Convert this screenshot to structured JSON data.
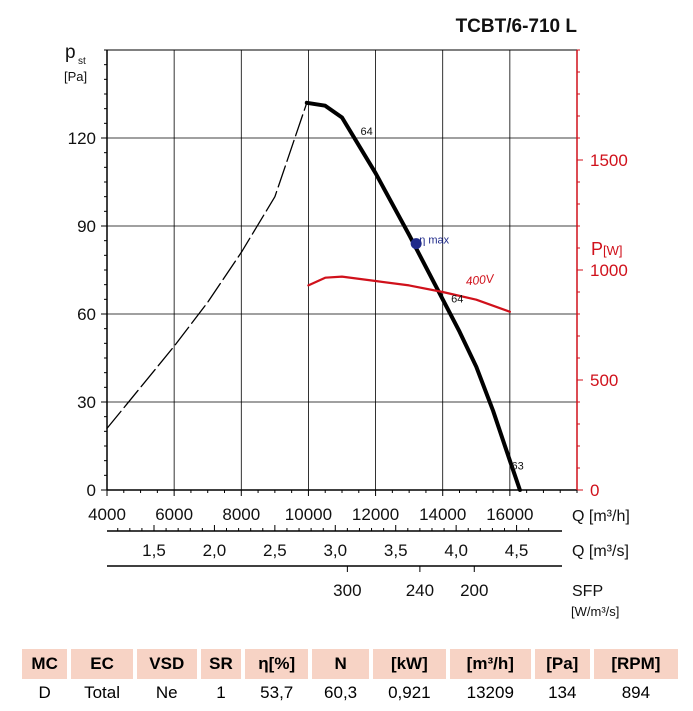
{
  "chart_data": {
    "type": "line",
    "title": "TCBT/6-710 L",
    "left_axis": {
      "label_main": "p",
      "label_sub": "st",
      "unit": "[Pa]",
      "range": [
        0,
        150
      ],
      "ticks": [
        0,
        30,
        60,
        90,
        120
      ],
      "tick_labels": [
        "0",
        "30",
        "60",
        "90",
        "120"
      ]
    },
    "right_axis": {
      "label_main": "P",
      "unit": "[W]",
      "range": [
        0,
        2000
      ],
      "ticks": [
        0,
        500,
        1000,
        1500
      ],
      "tick_labels": [
        "0",
        "500",
        "1000",
        "1500"
      ],
      "color": "#d0111b"
    },
    "x_axis": {
      "label": "Q [m³/h]",
      "range": [
        4000,
        18000
      ],
      "ticks": [
        4000,
        6000,
        8000,
        10000,
        12000,
        14000,
        16000
      ],
      "tick_labels": [
        "4000",
        "6000",
        "8000",
        "10000",
        "12000",
        "14000",
        "16000"
      ]
    },
    "secondary_axis_m3s": {
      "label": "Q [m³/s]",
      "ticks": [
        1.5,
        2.0,
        2.5,
        3.0,
        3.5,
        4.0,
        4.5
      ],
      "tick_labels": [
        "1,5",
        "2,0",
        "2,5",
        "3,0",
        "3,5",
        "4,0",
        "4,5"
      ]
    },
    "sfp_axis": {
      "label": "SFP",
      "unit": "[W/m³/s]",
      "ticks": [
        300,
        240,
        200
      ],
      "tick_labels": [
        "300",
        "240",
        "200"
      ],
      "q_m3s": [
        3.1,
        3.7,
        4.15
      ]
    },
    "series": [
      {
        "name": "stall",
        "style": "dashed",
        "color": "#000000",
        "x": [
          4000,
          5000,
          6000,
          7000,
          8000,
          9000,
          9950
        ],
        "y": [
          21,
          35,
          49,
          64,
          81,
          100,
          132
        ]
      },
      {
        "name": "pressure",
        "style": "solid",
        "color": "#000000",
        "x": [
          9950,
          10500,
          11000,
          12000,
          13000,
          14000,
          14500,
          15000,
          15500,
          16000,
          16300
        ],
        "y": [
          132,
          131,
          127,
          108,
          87,
          65,
          54,
          42,
          27,
          10,
          0
        ]
      },
      {
        "name": "400V",
        "style": "solid",
        "color": "#d0111b",
        "axis": "right",
        "x": [
          10000,
          10500,
          11000,
          12000,
          13000,
          14000,
          15000,
          16000
        ],
        "y": [
          930,
          965,
          970,
          950,
          930,
          900,
          865,
          810
        ]
      }
    ],
    "annotations": [
      {
        "text": "64",
        "x": 11550,
        "y": 121
      },
      {
        "text": "64",
        "x": 14250,
        "y": 64
      },
      {
        "text": "63",
        "x": 16050,
        "y": 7
      },
      {
        "text": "η max",
        "x": 13300,
        "y": 84
      },
      {
        "text": "400V",
        "x": 14700,
        "y": 930,
        "axis": "right"
      }
    ],
    "eta_max": {
      "x": 13209,
      "y": 84
    }
  },
  "table": {
    "headers": [
      "MC",
      "EC",
      "VSD",
      "SR",
      "η[%]",
      "N",
      "[kW]",
      "[m³/h]",
      "[Pa]",
      "[RPM]"
    ],
    "values": [
      "D",
      "Total",
      "Ne",
      "1",
      "53,7",
      "60,3",
      "0,921",
      "13209",
      "134",
      "894"
    ]
  }
}
